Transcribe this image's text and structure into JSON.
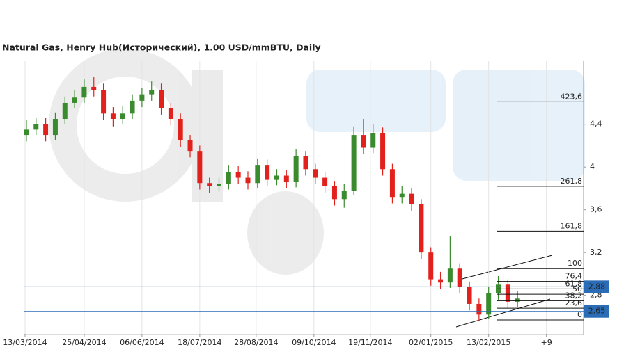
{
  "chart_data": {
    "type": "candlestick",
    "title": "Natural Gas, Henry Hub(Исторический), 1.00 USD/mmBTU, Daily",
    "x": [
      "14/03/2014",
      "21/03/2014",
      "28/03/2014",
      "04/04/2014",
      "11/04/2014",
      "18/04/2014",
      "25/04/2014",
      "02/05/2014",
      "09/05/2014",
      "16/05/2014",
      "23/05/2014",
      "30/05/2014",
      "06/06/2014",
      "13/06/2014",
      "20/06/2014",
      "27/06/2014",
      "04/07/2014",
      "11/07/2014",
      "18/07/2014",
      "25/07/2014",
      "01/08/2014",
      "08/08/2014",
      "15/08/2014",
      "22/08/2014",
      "29/08/2014",
      "05/09/2014",
      "12/09/2014",
      "19/09/2014",
      "26/09/2014",
      "03/10/2014",
      "10/10/2014",
      "17/10/2014",
      "24/10/2014",
      "31/10/2014",
      "07/11/2014",
      "14/11/2014",
      "21/11/2014",
      "28/11/2014",
      "05/12/2014",
      "12/12/2014",
      "19/12/2014",
      "26/12/2014",
      "02/01/2015",
      "09/01/2015",
      "16/01/2015",
      "23/01/2015",
      "30/01/2015",
      "06/02/2015",
      "13/02/2015",
      "20/02/2015",
      "27/02/2015",
      "06/03/2015"
    ],
    "open": [
      4.3,
      4.35,
      4.4,
      4.3,
      4.45,
      4.6,
      4.65,
      4.75,
      4.72,
      4.5,
      4.45,
      4.5,
      4.62,
      4.68,
      4.72,
      4.55,
      4.45,
      4.25,
      4.15,
      3.85,
      3.82,
      3.84,
      3.95,
      3.9,
      3.85,
      4.02,
      3.88,
      3.92,
      3.86,
      4.1,
      3.98,
      3.9,
      3.82,
      3.7,
      3.78,
      4.3,
      4.18,
      4.32,
      3.98,
      3.72,
      3.75,
      3.65,
      3.2,
      2.95,
      2.92,
      3.05,
      2.88,
      2.72,
      2.62,
      2.82,
      2.9,
      2.74
    ],
    "high": [
      4.44,
      4.46,
      4.46,
      4.51,
      4.66,
      4.72,
      4.82,
      4.84,
      4.78,
      4.56,
      4.57,
      4.68,
      4.74,
      4.8,
      4.78,
      4.6,
      4.5,
      4.3,
      4.2,
      3.9,
      3.9,
      4.02,
      4.01,
      3.96,
      4.08,
      4.07,
      3.98,
      3.97,
      4.17,
      4.15,
      4.03,
      3.95,
      3.87,
      3.84,
      4.38,
      4.45,
      4.4,
      4.37,
      4.03,
      3.82,
      3.8,
      3.7,
      3.25,
      3.02,
      3.35,
      3.1,
      2.93,
      2.77,
      2.88,
      2.98,
      2.95,
      2.84
    ],
    "low": [
      4.24,
      4.3,
      4.24,
      4.25,
      4.4,
      4.55,
      4.6,
      4.66,
      4.44,
      4.38,
      4.4,
      4.45,
      4.56,
      4.62,
      4.49,
      4.39,
      4.19,
      4.09,
      3.79,
      3.76,
      3.77,
      3.79,
      3.84,
      3.79,
      3.8,
      3.82,
      3.83,
      3.8,
      3.81,
      3.92,
      3.84,
      3.76,
      3.64,
      3.62,
      3.74,
      4.12,
      4.13,
      3.92,
      3.66,
      3.66,
      3.59,
      3.14,
      2.89,
      2.86,
      2.87,
      2.82,
      2.66,
      2.56,
      2.58,
      2.76,
      2.68,
      2.69
    ],
    "close": [
      4.35,
      4.4,
      4.3,
      4.45,
      4.6,
      4.65,
      4.75,
      4.72,
      4.5,
      4.45,
      4.5,
      4.62,
      4.68,
      4.72,
      4.55,
      4.45,
      4.25,
      4.15,
      3.85,
      3.82,
      3.84,
      3.95,
      3.9,
      3.85,
      4.02,
      3.88,
      3.92,
      3.86,
      4.1,
      3.98,
      3.9,
      3.82,
      3.7,
      3.78,
      4.3,
      4.18,
      4.32,
      3.98,
      3.72,
      3.75,
      3.65,
      3.2,
      2.95,
      2.92,
      3.05,
      2.88,
      2.72,
      2.62,
      2.82,
      2.9,
      2.74,
      2.77
    ],
    "up_color": "#3a8a2e",
    "down_color": "#e3211c",
    "xlim": [
      "12/03/2014",
      "23/04/2015"
    ],
    "xticks": [
      "13/03/2014",
      "25/04/2014",
      "06/06/2014",
      "18/07/2014",
      "28/08/2014",
      "09/10/2014",
      "19/11/2014",
      "02/01/2015",
      "13/02/2015",
      {
        "value": "27/03/2015",
        "label": "+9"
      }
    ],
    "ylim": [
      2.44,
      4.99
    ],
    "yticks": [
      {
        "value": 4.4,
        "label": "4,4"
      },
      4,
      {
        "value": 3.6,
        "label": "3,6"
      },
      {
        "value": 3.2,
        "label": "3,2"
      },
      {
        "value": 2.8,
        "label": "2,8"
      }
    ],
    "price_lines": [
      2.88,
      2.65
    ],
    "price_color": "#2b6cb6",
    "fibonacci": [
      {
        "value": 2.57,
        "label": "0"
      },
      {
        "value": 2.68,
        "label": "23,6"
      },
      {
        "value": 2.75,
        "label": "38,2"
      },
      {
        "value": 2.81,
        "label": "50"
      },
      {
        "value": 2.86,
        "label": "61,8"
      },
      {
        "value": 2.93,
        "label": "76,4"
      },
      {
        "value": 3.05,
        "label": "100"
      },
      {
        "value": 3.4,
        "label": "161,8"
      },
      {
        "value": 3.82,
        "label": "261,8"
      },
      {
        "value": 4.61,
        "label": "423,6"
      }
    ],
    "grid": true
  }
}
